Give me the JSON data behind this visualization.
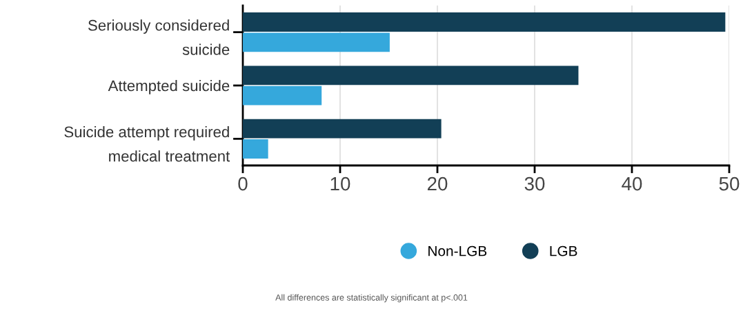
{
  "chart_data": {
    "type": "bar",
    "orientation": "horizontal",
    "categories": [
      "Seriously considered\nsuicide",
      "Attempted suicide",
      "Suicide attempt required\nmedical treatment"
    ],
    "series": [
      {
        "name": "Non-LGB",
        "color": "#35a8dc",
        "values": [
          15.1,
          8.1,
          2.6
        ]
      },
      {
        "name": "LGB",
        "color": "#123f56",
        "values": [
          49.6,
          34.5,
          20.4
        ]
      }
    ],
    "xlim": [
      0,
      50
    ],
    "xticks": [
      0,
      10,
      20,
      30,
      40,
      50
    ],
    "grid": "x",
    "legend": "bottom",
    "annotations": [
      "All differences are statistically significant at p<.001"
    ]
  }
}
